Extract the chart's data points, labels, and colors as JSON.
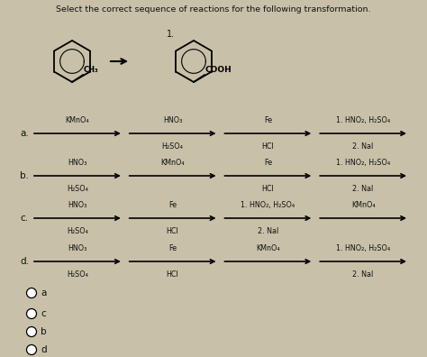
{
  "title": "Select the correct sequence of reactions for the following transformation.",
  "bg_color": "#c8c0a8",
  "text_color": "#111111",
  "options": [
    "a",
    "c",
    "b",
    "d"
  ],
  "rows": [
    {
      "label": "a.",
      "steps": [
        {
          "top": "KMnO₄",
          "bottom": ""
        },
        {
          "top": "HNO₃",
          "bottom": "H₂SO₄"
        },
        {
          "top": "Fe",
          "bottom": "HCl"
        },
        {
          "top": "1. HNO₂, H₂SO₄",
          "bottom": "2. NaI"
        }
      ]
    },
    {
      "label": "b.",
      "steps": [
        {
          "top": "HNO₃",
          "bottom": "H₂SO₄"
        },
        {
          "top": "KMnO₄",
          "bottom": ""
        },
        {
          "top": "Fe",
          "bottom": "HCl"
        },
        {
          "top": "1. HNO₂, H₂SO₄",
          "bottom": "2. NaI"
        }
      ]
    },
    {
      "label": "c.",
      "steps": [
        {
          "top": "HNO₃",
          "bottom": "H₂SO₄"
        },
        {
          "top": "Fe",
          "bottom": "HCl"
        },
        {
          "top": "1. HNO₂, H₂SO₄",
          "bottom": "2. NaI"
        },
        {
          "top": "KMnO₄",
          "bottom": ""
        }
      ]
    },
    {
      "label": "d.",
      "steps": [
        {
          "top": "HNO₃",
          "bottom": "H₂SO₄"
        },
        {
          "top": "Fe",
          "bottom": "HCl"
        },
        {
          "top": "KMnO₄",
          "bottom": ""
        },
        {
          "top": "1. HNO₂, H₂SO₄",
          "bottom": "2. NaI"
        }
      ]
    }
  ],
  "mol_arrow_label": "1.",
  "left_mol_sub": "CH₃",
  "right_mol_sub": "COOH"
}
